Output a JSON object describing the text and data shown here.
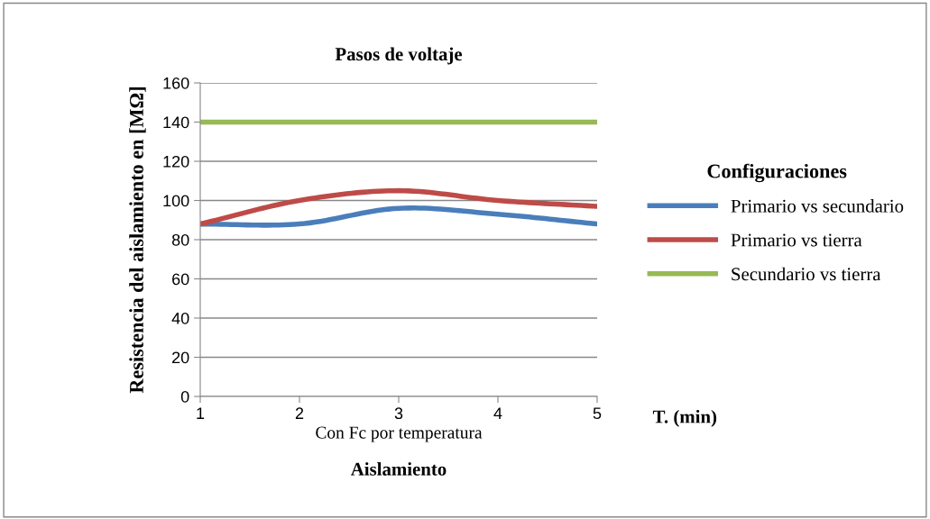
{
  "chart_data": {
    "type": "line",
    "title": "Pasos de voltaje",
    "xlabel": "Aislamiento",
    "ylabel": "Resistencia del aislamiento en [MΩ]",
    "legend_title": "Configuraciones",
    "annotations": [
      "Con Fc por temperatura",
      "T. (min)"
    ],
    "x": [
      1,
      2,
      3,
      4,
      5
    ],
    "series": [
      {
        "name": "Primario vs secundario",
        "color": "#4a7ebb",
        "values": [
          88,
          88,
          96,
          93,
          88
        ]
      },
      {
        "name": "Primario vs tierra",
        "color": "#be4b48",
        "values": [
          88,
          100,
          105,
          100,
          97
        ]
      },
      {
        "name": "Secundario vs tierra",
        "color": "#98b954",
        "values": [
          140,
          140,
          140,
          140,
          140
        ]
      }
    ],
    "xlim": [
      1,
      5
    ],
    "xticks": [
      1,
      2,
      3,
      4,
      5
    ],
    "ylim": [
      0,
      160
    ],
    "yticks": [
      0,
      20,
      40,
      60,
      80,
      100,
      120,
      140,
      160
    ],
    "grid": "y",
    "legend": "right",
    "marker": "none",
    "line_style": "solid"
  }
}
